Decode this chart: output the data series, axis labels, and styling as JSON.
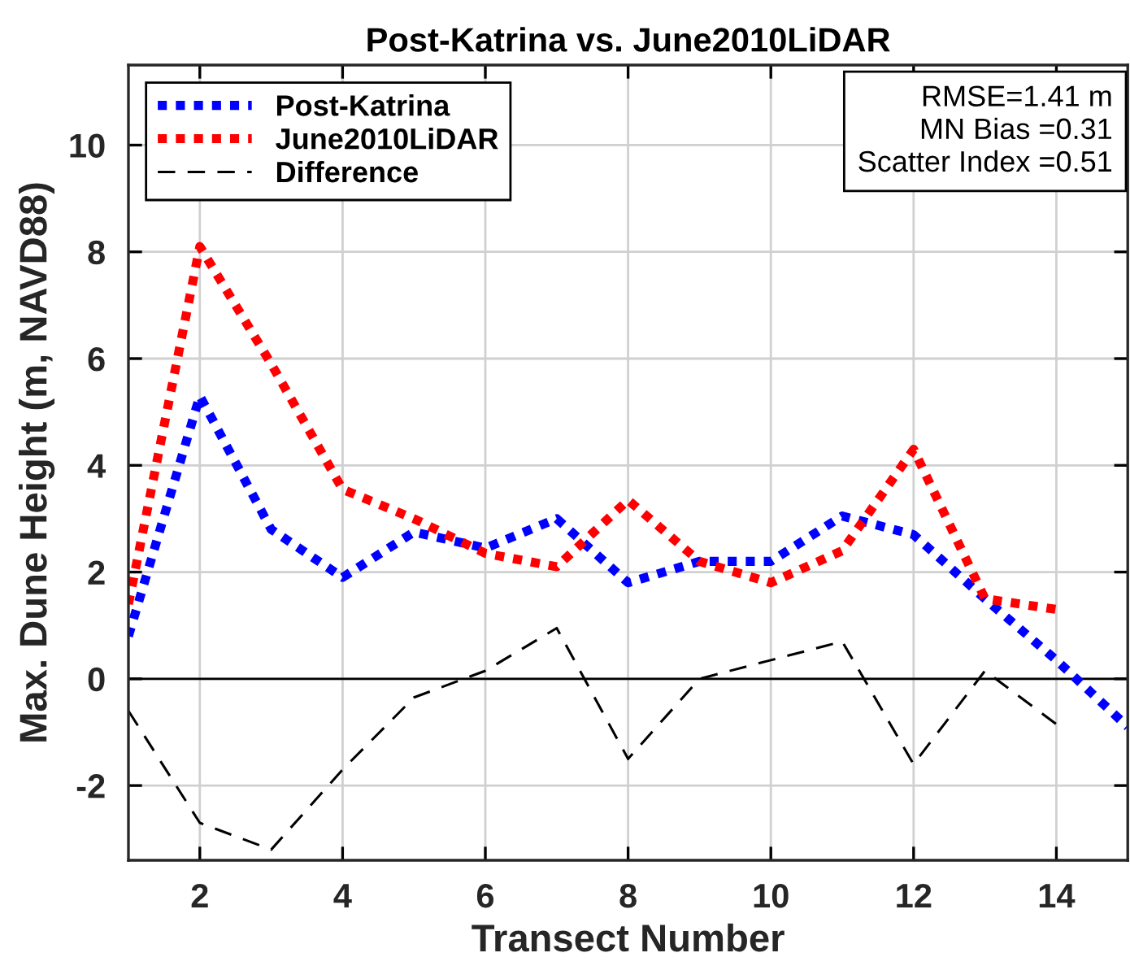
{
  "chart_data": {
    "type": "line",
    "title": "Post-Katrina vs. June2010LiDAR",
    "xlabel": "Transect Number",
    "ylabel": "Max. Dune Height (m, NAVD88)",
    "x": [
      1,
      2,
      3,
      4,
      5,
      6,
      7,
      8,
      9,
      10,
      11,
      12,
      13,
      14,
      15
    ],
    "series": [
      {
        "name": "Post-Katrina",
        "color": "#0000ff",
        "line_style": "dotted",
        "values": [
          0.8,
          5.3,
          2.8,
          1.9,
          2.75,
          2.45,
          3.0,
          1.8,
          2.2,
          2.2,
          3.05,
          2.7,
          1.5,
          0.35,
          -0.9
        ]
      },
      {
        "name": "June2010LiDAR",
        "color": "#ff0000",
        "line_style": "dotted",
        "values": [
          1.4,
          8.1,
          5.9,
          3.55,
          3.0,
          2.35,
          2.1,
          3.35,
          2.2,
          1.8,
          2.4,
          4.3,
          1.5,
          1.3,
          null
        ]
      },
      {
        "name": "Difference",
        "color": "#000000",
        "line_style": "dashed",
        "values": [
          -0.6,
          -2.7,
          -3.2,
          -1.7,
          -0.35,
          0.15,
          0.95,
          -1.5,
          0.0,
          0.35,
          0.7,
          -1.6,
          0.15,
          -0.85,
          null
        ]
      }
    ],
    "xlim": [
      1,
      15
    ],
    "ylim": [
      -3.4,
      11.5
    ],
    "xticks": [
      2,
      4,
      6,
      8,
      10,
      12,
      14
    ],
    "yticks": [
      -2,
      0,
      2,
      4,
      6,
      8,
      10
    ],
    "ref_lines": [
      {
        "axis": "y",
        "value": 0,
        "color": "#000000",
        "line_style": "solid"
      }
    ],
    "annotations": [
      "RMSE=1.41 m",
      "MN Bias =0.31",
      "Scatter Index =0.51"
    ],
    "grid": true,
    "legend": "top left",
    "marker": "none"
  }
}
